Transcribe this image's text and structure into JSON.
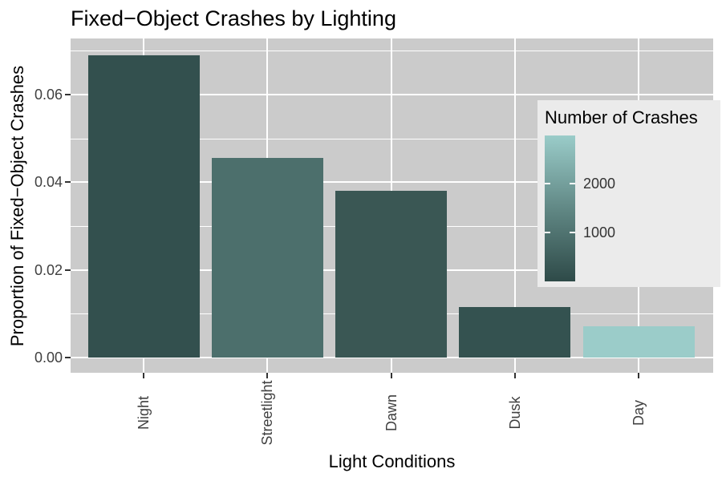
{
  "title": "Fixed−Object Crashes by Lighting",
  "x_axis": {
    "title": "Light Conditions"
  },
  "y_axis": {
    "title": "Proportion of Fixed−Object Crashes",
    "ticks": [
      {
        "label": "0.00",
        "value": 0.0
      },
      {
        "label": "0.02",
        "value": 0.02
      },
      {
        "label": "0.04",
        "value": 0.04
      },
      {
        "label": "0.06",
        "value": 0.06
      }
    ],
    "minor_gridlines": [
      0.01,
      0.03,
      0.05,
      0.07
    ]
  },
  "legend": {
    "title": "Number of Crashes",
    "ticks": [
      {
        "label": "2000",
        "value": 2000
      },
      {
        "label": "1000",
        "value": 1000
      }
    ],
    "scale_min": 0,
    "scale_max": 2980,
    "gradient_low": "#2E4A48",
    "gradient_mid": "#618885",
    "gradient_high": "#9ACCC9"
  },
  "colors": {
    "outer_background": "#FFFFFF",
    "panel_background": "#CBCBCB",
    "gridline": "#FFFFFF",
    "tick_mark": "#333333",
    "axis_text": "#404040",
    "legend_background": "#EBEBEB"
  },
  "chart_data": {
    "type": "bar",
    "title": "Fixed−Object Crashes by Lighting",
    "xlabel": "Light Conditions",
    "ylabel": "Proportion of Fixed−Object Crashes",
    "categories": [
      "Night",
      "Streetlight",
      "Dawn",
      "Dusk",
      "Day"
    ],
    "values": [
      0.069,
      0.0455,
      0.038,
      0.0115,
      0.0072
    ],
    "bar_colors": [
      "#33504E",
      "#4C6F6C",
      "#3A5754",
      "#345250",
      "#9BCCC9"
    ],
    "counts_estimated": [
      150,
      850,
      320,
      200,
      2950
    ],
    "ylim": [
      0,
      0.0725
    ],
    "y_major_ticks": [
      0.0,
      0.02,
      0.04,
      0.06
    ],
    "grid": "on",
    "legend_position": "inside-right",
    "fill_legend": {
      "title": "Number of Crashes",
      "range": [
        0,
        2980
      ],
      "tick_values": [
        1000,
        2000
      ]
    }
  }
}
